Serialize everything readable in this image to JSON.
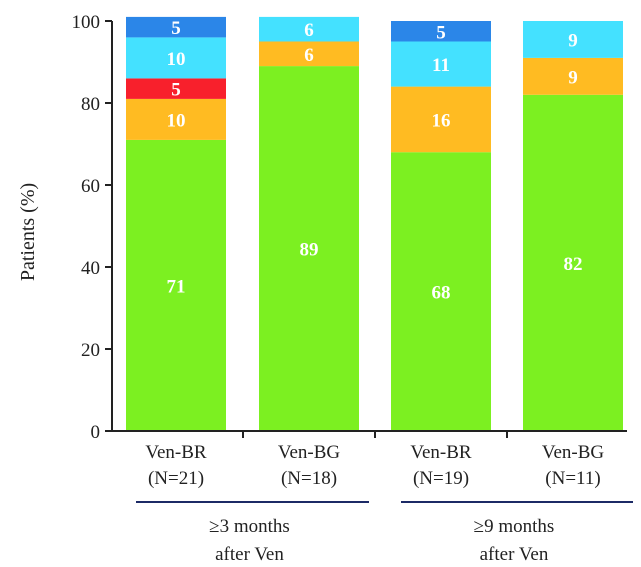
{
  "chart_data": {
    "type": "bar",
    "stacked": true,
    "ylabel": "Patients (%)",
    "ylim": [
      0,
      100
    ],
    "yticks": [
      "0",
      "20",
      "40",
      "60",
      "80",
      "100"
    ],
    "categories": [
      "Ven-BR\n(N=21)",
      "Ven-BG\n(N=18)",
      "Ven-BR\n(N=19)",
      "Ven-BG\n(N=11)"
    ],
    "category_lines": [
      [
        "Ven-BR",
        "(N=21)"
      ],
      [
        "Ven-BG",
        "(N=18)"
      ],
      [
        "Ven-BR",
        "(N=19)"
      ],
      [
        "Ven-BG",
        "(N=11)"
      ]
    ],
    "groups": [
      {
        "lines": [
          "≥3 months",
          "after Ven"
        ],
        "categories": [
          0,
          1
        ]
      },
      {
        "lines": [
          "≥9 months",
          "after Ven"
        ],
        "categories": [
          2,
          3
        ]
      }
    ],
    "series": [
      {
        "color": "#7cf021",
        "values": [
          71,
          89,
          68,
          82
        ],
        "labels": [
          "71",
          "89",
          "68",
          "82"
        ]
      },
      {
        "color": "#ffbb22",
        "values": [
          10,
          6,
          16,
          9
        ],
        "labels": [
          "10",
          "6",
          "16",
          "9"
        ]
      },
      {
        "color": "#f8202c",
        "values": [
          5,
          0,
          0,
          0
        ],
        "labels": [
          "5",
          "",
          "",
          ""
        ]
      },
      {
        "color": "#44e1ff",
        "values": [
          10,
          6,
          11,
          9
        ],
        "labels": [
          "10",
          "6",
          "11",
          "9"
        ]
      },
      {
        "color": "#2b86e8",
        "values": [
          5,
          0,
          5,
          0
        ],
        "labels": [
          "5",
          "",
          "5",
          ""
        ]
      }
    ],
    "grid": false,
    "legend": "none"
  }
}
